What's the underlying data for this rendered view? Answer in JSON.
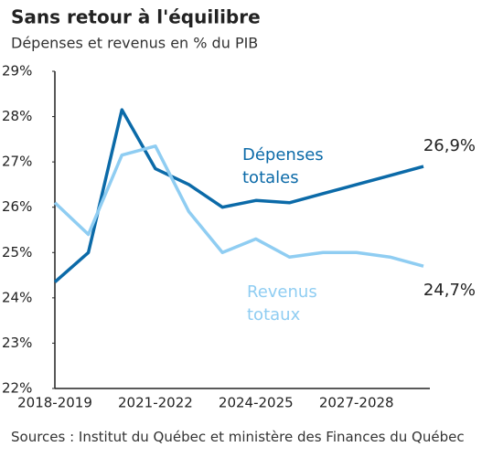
{
  "chart_data": {
    "type": "line",
    "title": "Sans retour à l'équilibre",
    "subtitle": "Dépenses et revenus en % du PIB",
    "source": "Sources : Institut du Québec et ministère des Finances du Québec",
    "categories": [
      "2018-2019",
      null,
      null,
      "2021-2022",
      null,
      null,
      "2024-2025",
      null,
      null,
      "2027-2028",
      null,
      null
    ],
    "series": [
      {
        "name": "Dépenses totales",
        "color": "#0b6aa8",
        "end_label": "26,9%",
        "values": [
          24.35,
          25.0,
          28.15,
          26.85,
          26.5,
          26.0,
          26.15,
          26.1,
          26.3,
          26.5,
          26.7,
          26.9
        ]
      },
      {
        "name": "Revenus totaux",
        "color": "#8fcdf2",
        "end_label": "24,7%",
        "values": [
          26.1,
          25.4,
          27.15,
          27.35,
          25.9,
          25.0,
          25.3,
          24.9,
          25.0,
          25.0,
          24.9,
          24.7
        ]
      }
    ],
    "ylim": [
      22,
      29
    ],
    "yticks": [
      {
        "value": 22,
        "label": "22%"
      },
      {
        "value": 23,
        "label": "23%"
      },
      {
        "value": 24,
        "label": "24%"
      },
      {
        "value": 25,
        "label": "25%"
      },
      {
        "value": 26,
        "label": "26%"
      },
      {
        "value": 27,
        "label": "27%"
      },
      {
        "value": 28,
        "label": "28%"
      },
      {
        "value": 29,
        "label": "29%"
      }
    ],
    "grid": false
  }
}
